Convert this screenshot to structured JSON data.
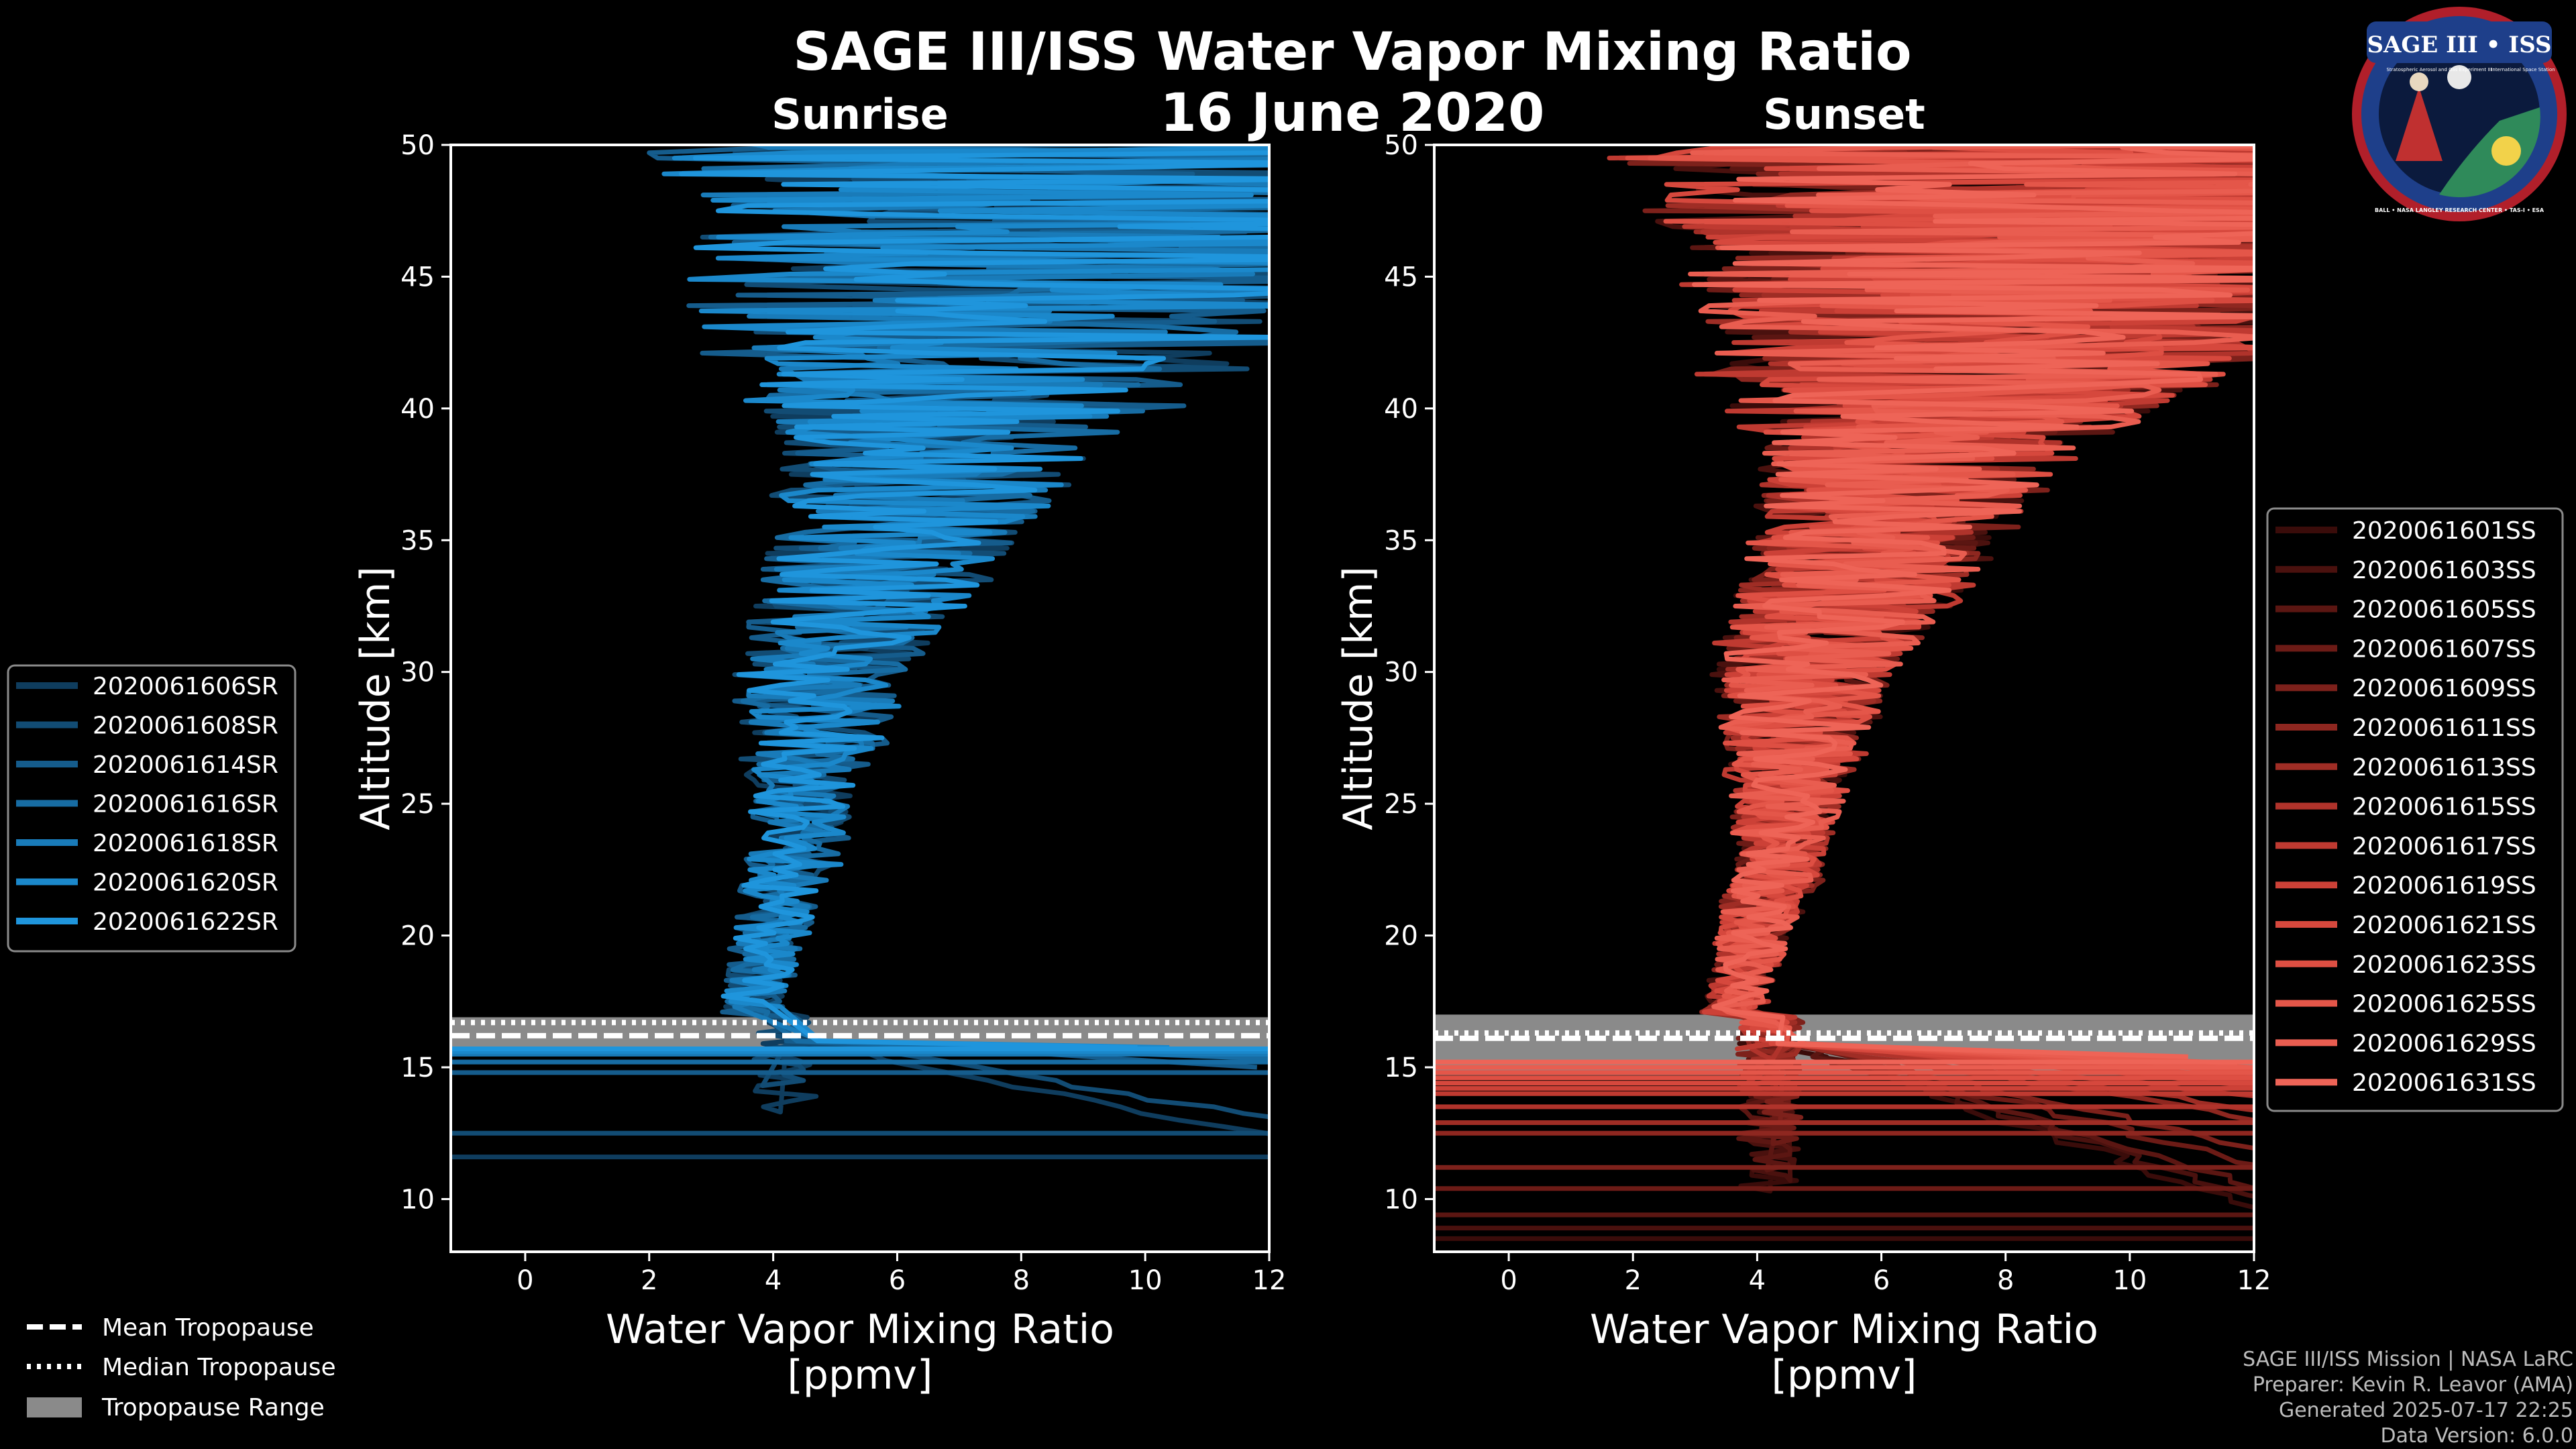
{
  "header": {
    "title": "SAGE III/ISS Water Vapor Mixing Ratio",
    "date": "16 June 2020"
  },
  "logo": {
    "name": "SAGE III • ISS",
    "subtitle": "Stratospheric Aerosol and Gas Experiment III",
    "station": "International Space Station",
    "ring": "BALL • NASA LANGLEY RESEARCH CENTER • TAS-I • ESA"
  },
  "credits": {
    "line1": "SAGE III/ISS Mission | NASA LaRC",
    "line2": "Preparer: Kevin R. Leavor (AMA)",
    "line3": "Generated 2025-07-17 22:25",
    "line4": "Data Version: 6.0.0"
  },
  "tropopause_legend": {
    "mean": "Mean Tropopause",
    "median": "Median Tropopause",
    "range": "Tropopause Range"
  },
  "colors": {
    "sunrise": "#1f8fd6",
    "sunset": "#e8554a",
    "tropopause_range": "#8a8a8a"
  },
  "chart_data": [
    {
      "type": "line",
      "panel": "sunrise",
      "title": "Sunrise",
      "xlabel": "Water Vapor Mixing Ratio",
      "xunit": "[ppmv]",
      "ylabel": "Altitude [km]",
      "xlim": [
        -1.2,
        12
      ],
      "ylim": [
        8,
        50
      ],
      "xticks": [
        0,
        2,
        4,
        6,
        8,
        10,
        12
      ],
      "yticks": [
        10,
        15,
        20,
        25,
        30,
        35,
        40,
        45,
        50
      ],
      "legend_position": "left",
      "series": [
        {
          "name": "2020061606SR",
          "color": "#0f3d5e",
          "seed": 11,
          "bottom_km": 11.6,
          "spread": 1.0
        },
        {
          "name": "2020061608SR",
          "color": "#124c74",
          "seed": 23,
          "bottom_km": 12.5,
          "spread": 1.05
        },
        {
          "name": "2020061614SR",
          "color": "#155c8c",
          "seed": 37,
          "bottom_km": 14.8,
          "spread": 1.1
        },
        {
          "name": "2020061616SR",
          "color": "#176ca3",
          "seed": 41,
          "bottom_km": 15.2,
          "spread": 0.95
        },
        {
          "name": "2020061618SR",
          "color": "#197bb9",
          "seed": 53,
          "bottom_km": 15.5,
          "spread": 1.0
        },
        {
          "name": "2020061620SR",
          "color": "#1b88cb",
          "seed": 67,
          "bottom_km": 15.6,
          "spread": 1.05
        },
        {
          "name": "2020061622SR",
          "color": "#1f95dc",
          "seed": 79,
          "bottom_km": 15.7,
          "spread": 1.0
        }
      ],
      "tropopause": {
        "mean": 16.2,
        "median": 16.7,
        "min": 15.7,
        "max": 16.9
      }
    },
    {
      "type": "line",
      "panel": "sunset",
      "title": "Sunset",
      "xlabel": "Water Vapor Mixing Ratio",
      "xunit": "[ppmv]",
      "ylabel": "Altitude [km]",
      "xlim": [
        -1.2,
        12
      ],
      "ylim": [
        8,
        50
      ],
      "xticks": [
        0,
        2,
        4,
        6,
        8,
        10,
        12
      ],
      "yticks": [
        10,
        15,
        20,
        25,
        30,
        35,
        40,
        45,
        50
      ],
      "legend_position": "right",
      "series": [
        {
          "name": "2020061601SS",
          "color": "#3a0c0a",
          "seed": 101,
          "bottom_km": 8.5,
          "spread": 1.0
        },
        {
          "name": "2020061603SS",
          "color": "#4a110e",
          "seed": 113,
          "bottom_km": 8.9,
          "spread": 1.05
        },
        {
          "name": "2020061605SS",
          "color": "#5b1612",
          "seed": 127,
          "bottom_km": 9.4,
          "spread": 1.0
        },
        {
          "name": "2020061607SS",
          "color": "#6c1b16",
          "seed": 131,
          "bottom_km": 10.4,
          "spread": 0.95
        },
        {
          "name": "2020061609SS",
          "color": "#7d211b",
          "seed": 149,
          "bottom_km": 11.2,
          "spread": 1.1
        },
        {
          "name": "2020061611SS",
          "color": "#8e2720",
          "seed": 151,
          "bottom_km": 12.5,
          "spread": 1.0
        },
        {
          "name": "2020061613SS",
          "color": "#9f2d25",
          "seed": 163,
          "bottom_km": 12.9,
          "spread": 1.05
        },
        {
          "name": "2020061615SS",
          "color": "#b0332b",
          "seed": 173,
          "bottom_km": 13.5,
          "spread": 1.0
        },
        {
          "name": "2020061617SS",
          "color": "#bf3a31",
          "seed": 181,
          "bottom_km": 14.0,
          "spread": 1.1
        },
        {
          "name": "2020061619SS",
          "color": "#cc4137",
          "seed": 191,
          "bottom_km": 14.2,
          "spread": 0.95
        },
        {
          "name": "2020061621SS",
          "color": "#d6483d",
          "seed": 199,
          "bottom_km": 14.4,
          "spread": 1.0
        },
        {
          "name": "2020061623SS",
          "color": "#de4f43",
          "seed": 211,
          "bottom_km": 14.6,
          "spread": 1.05
        },
        {
          "name": "2020061625SS",
          "color": "#e45649",
          "seed": 223,
          "bottom_km": 14.8,
          "spread": 1.0
        },
        {
          "name": "2020061629SS",
          "color": "#e95d50",
          "seed": 227,
          "bottom_km": 15.0,
          "spread": 1.05
        },
        {
          "name": "2020061631SS",
          "color": "#ee6457",
          "seed": 239,
          "bottom_km": 15.2,
          "spread": 1.0
        }
      ],
      "tropopause": {
        "mean": 16.1,
        "median": 16.3,
        "min": 14.7,
        "max": 17.0
      }
    }
  ]
}
